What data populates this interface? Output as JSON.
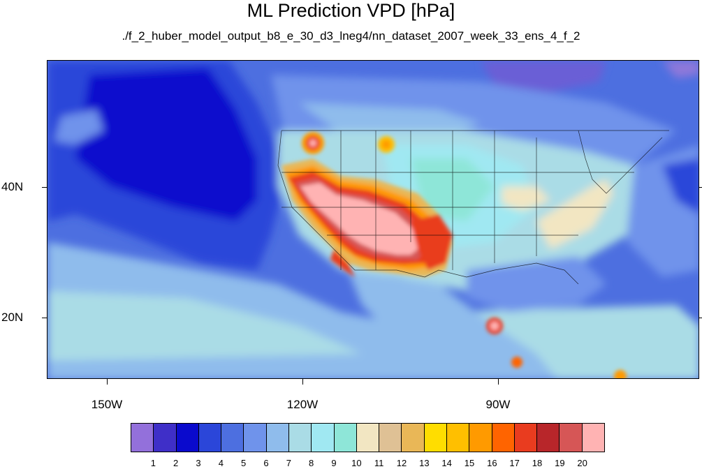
{
  "title": "ML Prediction VPD [hPa]",
  "subtitle": "./f_2_huber_model_output_b8_e_30_d3_lneg4/nn_dataset_2007_week_33_ens_4_f_2",
  "lat_labels": [
    "40N",
    "20N"
  ],
  "lon_labels": [
    "150W",
    "120W",
    "90W"
  ],
  "colorbar": {
    "labels": [
      "1",
      "2",
      "3",
      "4",
      "5",
      "6",
      "7",
      "8",
      "9",
      "10",
      "11",
      "12",
      "13",
      "14",
      "15",
      "16",
      "17",
      "18",
      "19",
      "20"
    ],
    "colors": [
      "#9370db",
      "#3f2fc8",
      "#0a0acd",
      "#2b46d9",
      "#4d6fe0",
      "#6f93eb",
      "#8fbcec",
      "#aadce6",
      "#a0e8f2",
      "#8ee6d8",
      "#f2e6c2",
      "#dfc195",
      "#e9b757",
      "#ffdd00",
      "#ffbf00",
      "#ff9a00",
      "#ff6400",
      "#e93c1f",
      "#b8262a",
      "#d65656",
      "#ffb3b3"
    ]
  },
  "map_layers": {
    "ocean_icons": [
      "contour-fill"
    ],
    "legend_colors_meaning": "VPD bins"
  }
}
